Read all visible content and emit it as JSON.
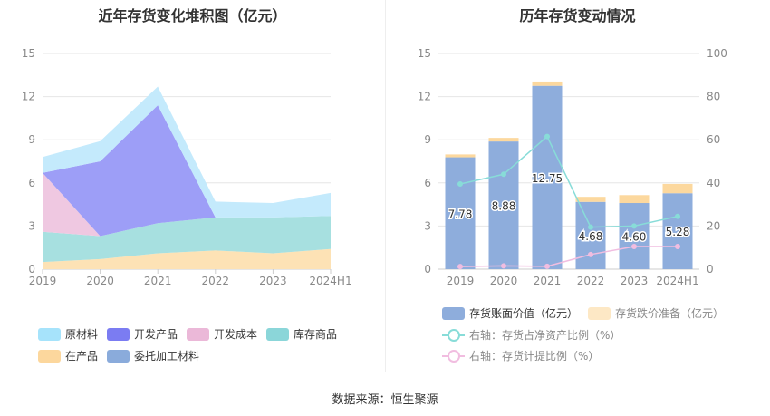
{
  "source_text": "数据来源：恒生聚源",
  "chart_data": [
    {
      "type": "area",
      "title": "近年存货变化堆积图（亿元）",
      "categories": [
        "2019",
        "2020",
        "2021",
        "2022",
        "2023",
        "2024H1"
      ],
      "ylim": [
        0,
        15
      ],
      "yticks": [
        0,
        3,
        6,
        9,
        12,
        15
      ],
      "stacked": true,
      "grid": true,
      "legend_position": "bottom",
      "series": [
        {
          "name": "在产品",
          "color": "#fde2b5",
          "values": [
            0.5,
            0.7,
            1.1,
            1.3,
            1.1,
            1.4
          ]
        },
        {
          "name": "库存商品",
          "color": "#a7e0e0",
          "values": [
            2.1,
            1.6,
            2.1,
            2.3,
            2.5,
            2.3
          ]
        },
        {
          "name": "开发成本",
          "color": "#efc8e1",
          "values": [
            4.1,
            0.0,
            0.0,
            0.0,
            0.0,
            0.0
          ]
        },
        {
          "name": "开发产品",
          "color": "#9d9ef7",
          "values": [
            0.0,
            5.2,
            8.2,
            0.0,
            0.0,
            0.0
          ]
        },
        {
          "name": "委托加工材料",
          "color": "#8aabdb",
          "values": [
            0.0,
            0.0,
            0.0,
            0.0,
            0.0,
            0.0
          ]
        },
        {
          "name": "原材料",
          "color": "#c4eafc",
          "values": [
            1.1,
            1.4,
            1.3,
            1.1,
            1.0,
            1.6
          ]
        }
      ],
      "legend": [
        {
          "name": "原材料",
          "color": "#a6e3fb"
        },
        {
          "name": "开发产品",
          "color": "#7b7cf2"
        },
        {
          "name": "开发成本",
          "color": "#ebb8d8"
        },
        {
          "name": "库存商品",
          "color": "#8bd6d9"
        },
        {
          "name": "在产品",
          "color": "#fcd79d"
        },
        {
          "name": "委托加工材料",
          "color": "#8aabdb"
        }
      ]
    },
    {
      "type": "bar",
      "title": "历年存货变动情况",
      "categories": [
        "2019",
        "2020",
        "2021",
        "2022",
        "2023",
        "2024H1"
      ],
      "ylim": [
        0,
        15
      ],
      "yticks": [
        0,
        3,
        6,
        9,
        12,
        15
      ],
      "y2lim": [
        0,
        100
      ],
      "y2ticks": [
        0,
        20,
        40,
        60,
        80,
        100
      ],
      "stacked": true,
      "grid": true,
      "legend_position": "bottom",
      "series": [
        {
          "name": "存货账面价值（亿元）",
          "color": "#8eaddc",
          "axis": "left",
          "values": [
            7.78,
            8.88,
            12.75,
            4.68,
            4.6,
            5.28
          ],
          "labels": [
            "7.78",
            "8.88",
            "12.75",
            "4.68",
            "4.60",
            "5.28"
          ]
        },
        {
          "name": "存货跌价准备（亿元）",
          "color": "#fcd89e",
          "axis": "left",
          "values": [
            0.2,
            0.25,
            0.3,
            0.35,
            0.55,
            0.65
          ]
        },
        {
          "name": "右轴：存货占净资产比例（%）",
          "type": "line",
          "color": "#88dcd8",
          "axis": "right",
          "values": [
            39.5,
            44,
            61.5,
            19.5,
            20,
            24.5
          ]
        },
        {
          "name": "右轴：存货计提比例（%）",
          "type": "line",
          "color": "#f1bde0",
          "axis": "right",
          "values": [
            1.2,
            1.5,
            1.3,
            6.8,
            10.5,
            10.5
          ]
        }
      ]
    }
  ]
}
